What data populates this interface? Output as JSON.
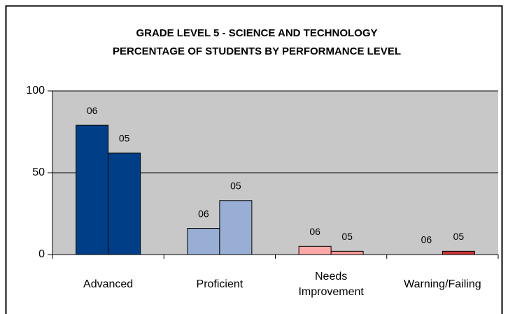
{
  "chart_data": {
    "type": "bar",
    "title": [
      "GRADE LEVEL 5 - SCIENCE AND TECHNOLOGY",
      "PERCENTAGE OF STUDENTS BY PERFORMANCE LEVEL"
    ],
    "categories": [
      "Advanced",
      "Proficient",
      "Needs Improvement",
      "Warning/Failing"
    ],
    "series": [
      {
        "name": "06",
        "colors": [
          "#003f87",
          "#98aed4",
          "#ffa8a8",
          "#ff9999"
        ],
        "values": [
          79,
          16,
          5,
          0
        ]
      },
      {
        "name": "05",
        "colors": [
          "#003f87",
          "#98aed4",
          "#ff9999",
          "#cc3333"
        ],
        "values": [
          62,
          33,
          2,
          2
        ]
      }
    ],
    "ylim": [
      0,
      100
    ],
    "yticks": [
      0,
      50,
      100
    ],
    "grid": true
  }
}
